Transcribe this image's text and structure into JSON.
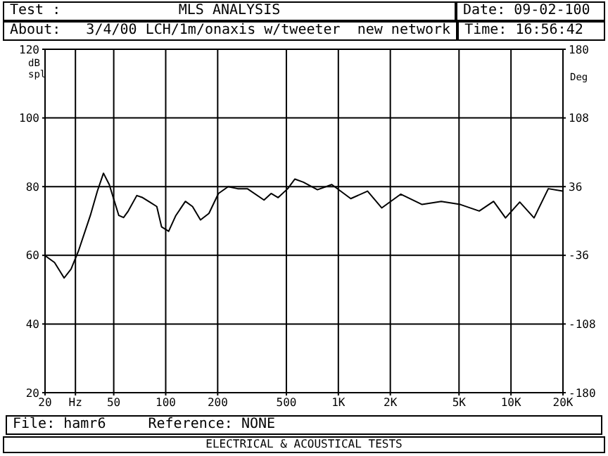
{
  "chart_data": {
    "type": "line",
    "title": "MLS ANALYSIS",
    "subtitle": "About:   3/4/00 LCH/1m/onaxis w/tweeter  new network",
    "annotations": [
      "Test :",
      "Date: 09-02-100",
      "Time: 16:56:42",
      "File: hamr6",
      "Reference: NONE",
      "ELECTRICAL & ACOUSTICAL TESTS"
    ],
    "ylabel": "dB spl",
    "y2label": "Deg",
    "log": "x",
    "x": [
      20,
      22.7,
      25.8,
      28.3,
      31.2,
      36.6,
      40.2,
      43.6,
      47.1,
      53.5,
      57,
      60.7,
      68,
      73.5,
      80.8,
      88.8,
      94.6,
      104,
      114.5,
      130,
      143,
      159,
      178,
      202,
      230,
      261,
      297,
      371,
      408,
      448,
      509,
      560,
      627,
      757,
      916,
      1180,
      1476,
      1783,
      2296,
      3055,
      3945,
      5085,
      6549,
      7928,
      9296,
      11240,
      13600,
      16450,
      19900
    ],
    "series": [
      {
        "color": "#000000",
        "values": [
          59.9,
          57.9,
          53.4,
          56,
          61.2,
          71.6,
          78.7,
          83.9,
          80.6,
          71.6,
          71,
          72.9,
          77.4,
          76.8,
          75.5,
          74.2,
          68.3,
          67,
          71.6,
          75.7,
          74.2,
          70.3,
          72.2,
          78,
          80,
          79.4,
          79.4,
          76.1,
          78,
          76.8,
          79.4,
          82.2,
          81.3,
          79.1,
          80.6,
          76.5,
          78.7,
          73.8,
          77.8,
          74.8,
          75.7,
          74.8,
          72.9,
          75.7,
          70.9,
          75.5,
          70.9,
          79.4,
          78.7
        ]
      }
    ],
    "xlim": [
      20,
      20000
    ],
    "xticks": [
      20,
      {
        "value": 30,
        "label": "Hz"
      },
      50,
      100,
      200,
      500,
      {
        "value": 1000,
        "label": "1K"
      },
      {
        "value": 2000,
        "label": "2K"
      },
      {
        "value": 5000,
        "label": "5K"
      },
      {
        "value": 10000,
        "label": "10K"
      },
      {
        "value": 20000,
        "label": "20K"
      }
    ],
    "ylim": [
      20,
      120
    ],
    "yticks": [
      20,
      40,
      60,
      80,
      100,
      120
    ],
    "y2lim": [
      -180,
      180
    ],
    "y2ticks": [
      -180,
      -108,
      -36,
      36,
      108,
      180
    ],
    "grid": true,
    "marker": "none",
    "line_style": "solid"
  }
}
